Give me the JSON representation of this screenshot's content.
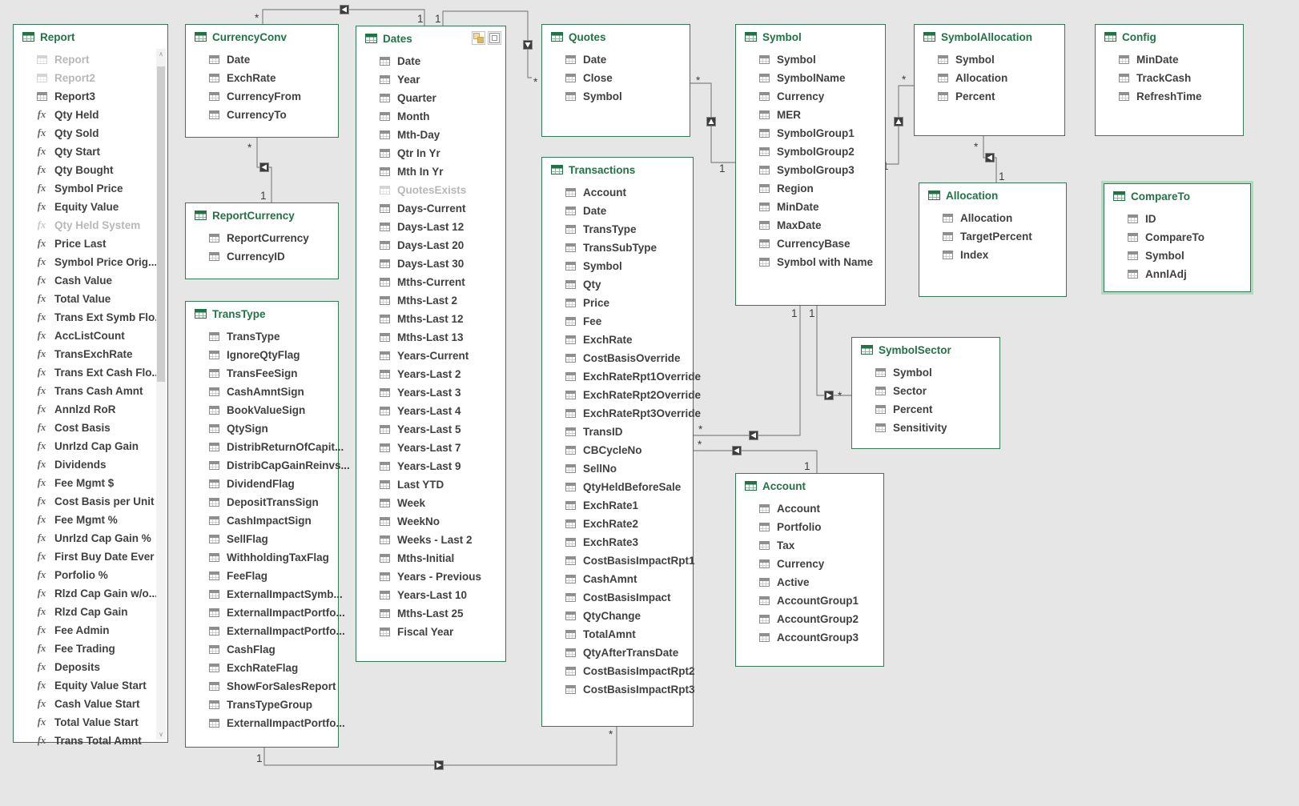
{
  "colors": {
    "background": "#e6e6e6",
    "table_border": "#337a55",
    "table_title": "#217346",
    "field_text": "#404040",
    "muted_text": "#b8b8b8",
    "connector_line": "#848484",
    "selected_outline": "#b0d9be"
  },
  "icons": {
    "measure": "fx",
    "scroll_up": "∧",
    "scroll_down": "∨"
  },
  "tables": {
    "report": {
      "title": "Report",
      "fields": [
        {
          "label": "Report",
          "muted": true
        },
        {
          "label": "Report2",
          "muted": true
        },
        "Report3",
        {
          "label": "Qty Held",
          "icon": "measure"
        },
        {
          "label": "Qty Sold",
          "icon": "measure"
        },
        {
          "label": "Qty Start",
          "icon": "measure"
        },
        {
          "label": "Qty Bought",
          "icon": "measure"
        },
        {
          "label": "Symbol Price",
          "icon": "measure"
        },
        {
          "label": "Equity Value",
          "icon": "measure"
        },
        {
          "label": "Qty Held System",
          "icon": "measure",
          "muted": true
        },
        {
          "label": "Price Last",
          "icon": "measure"
        },
        {
          "label": "Symbol Price Orig...",
          "icon": "measure"
        },
        {
          "label": "Cash Value",
          "icon": "measure"
        },
        {
          "label": "Total Value",
          "icon": "measure"
        },
        {
          "label": "Trans Ext Symb Flo...",
          "icon": "measure"
        },
        {
          "label": "AccListCount",
          "icon": "measure"
        },
        {
          "label": "TransExchRate",
          "icon": "measure"
        },
        {
          "label": "Trans Ext Cash Flo...",
          "icon": "measure"
        },
        {
          "label": "Trans Cash Amnt",
          "icon": "measure"
        },
        {
          "label": "Annlzd RoR",
          "icon": "measure"
        },
        {
          "label": "Cost Basis",
          "icon": "measure"
        },
        {
          "label": "Unrlzd Cap Gain",
          "icon": "measure"
        },
        {
          "label": "Dividends",
          "icon": "measure"
        },
        {
          "label": "Fee Mgmt $",
          "icon": "measure"
        },
        {
          "label": "Cost Basis per Unit",
          "icon": "measure"
        },
        {
          "label": "Fee Mgmt %",
          "icon": "measure"
        },
        {
          "label": "Unrlzd Cap Gain %",
          "icon": "measure"
        },
        {
          "label": "First Buy Date Ever",
          "icon": "measure"
        },
        {
          "label": "Porfolio %",
          "icon": "measure"
        },
        {
          "label": "Rlzd Cap Gain w/o...",
          "icon": "measure"
        },
        {
          "label": "Rlzd Cap Gain",
          "icon": "measure"
        },
        {
          "label": "Fee Admin",
          "icon": "measure"
        },
        {
          "label": "Fee Trading",
          "icon": "measure"
        },
        {
          "label": "Deposits",
          "icon": "measure"
        },
        {
          "label": "Equity Value Start",
          "icon": "measure"
        },
        {
          "label": "Cash Value Start",
          "icon": "measure"
        },
        {
          "label": "Total Value Start",
          "icon": "measure"
        },
        {
          "label": "Trans Total Amnt",
          "icon": "measure"
        }
      ]
    },
    "currency_conv": {
      "title": "CurrencyConv",
      "fields": [
        "Date",
        "ExchRate",
        "CurrencyFrom",
        "CurrencyTo"
      ]
    },
    "report_currency": {
      "title": "ReportCurrency",
      "fields": [
        "ReportCurrency",
        "CurrencyID"
      ]
    },
    "trans_type": {
      "title": "TransType",
      "fields": [
        "TransType",
        "IgnoreQtyFlag",
        "TransFeeSign",
        "CashAmntSign",
        "BookValueSign",
        "QtySign",
        "DistribReturnOfCapit...",
        "DistribCapGainReinvs...",
        "DividendFlag",
        "DepositTransSign",
        "CashImpactSign",
        "SellFlag",
        "WithholdingTaxFlag",
        "FeeFlag",
        "ExternalImpactSymb...",
        "ExternalImpactPortfo...",
        "ExternalImpactPortfo...",
        "CashFlag",
        "ExchRateFlag",
        "ShowForSalesReport",
        "TransTypeGroup",
        "ExternalImpactPortfo..."
      ]
    },
    "dates": {
      "title": "Dates",
      "fields": [
        "Date",
        "Year",
        "Quarter",
        "Month",
        "Mth-Day",
        "Qtr In Yr",
        "Mth In Yr",
        {
          "label": "QuotesExists",
          "muted": true
        },
        "Days-Current",
        "Days-Last 12",
        "Days-Last 20",
        "Days-Last 30",
        "Mths-Current",
        "Mths-Last 2",
        "Mths-Last 12",
        "Mths-Last 13",
        "Years-Current",
        "Years-Last 2",
        "Years-Last 3",
        "Years-Last 4",
        "Years-Last 5",
        "Years-Last 7",
        "Years-Last 9",
        "Last YTD",
        "Week",
        "WeekNo",
        "Weeks - Last 2",
        "Mths-Initial",
        "Years - Previous",
        "Years-Last 10",
        "Mths-Last 25",
        "Fiscal Year"
      ]
    },
    "quotes": {
      "title": "Quotes",
      "fields": [
        "Date",
        "Close",
        "Symbol"
      ]
    },
    "transactions": {
      "title": "Transactions",
      "fields": [
        "Account",
        "Date",
        "TransType",
        "TransSubType",
        "Symbol",
        "Qty",
        "Price",
        "Fee",
        "ExchRate",
        "CostBasisOverride",
        "ExchRateRpt1Override",
        "ExchRateRpt2Override",
        "ExchRateRpt3Override",
        "TransID",
        "CBCycleNo",
        "SellNo",
        "QtyHeldBeforeSale",
        "ExchRate1",
        "ExchRate2",
        "ExchRate3",
        "CostBasisImpactRpt1",
        "CashAmnt",
        "CostBasisImpact",
        "QtyChange",
        "TotalAmnt",
        "QtyAfterTransDate",
        "CostBasisImpactRpt2",
        "CostBasisImpactRpt3"
      ]
    },
    "symbol": {
      "title": "Symbol",
      "fields": [
        "Symbol",
        "SymbolName",
        "Currency",
        "MER",
        "SymbolGroup1",
        "SymbolGroup2",
        "SymbolGroup3",
        "Region",
        "MinDate",
        "MaxDate",
        "CurrencyBase",
        "Symbol with Name"
      ]
    },
    "symbol_allocation": {
      "title": "SymbolAllocation",
      "fields": [
        "Symbol",
        "Allocation",
        "Percent"
      ]
    },
    "config": {
      "title": "Config",
      "fields": [
        "MinDate",
        "TrackCash",
        "RefreshTime"
      ]
    },
    "allocation": {
      "title": "Allocation",
      "fields": [
        "Allocation",
        "TargetPercent",
        "Index"
      ]
    },
    "compare_to": {
      "title": "CompareTo",
      "fields": [
        "ID",
        "CompareTo",
        "Symbol",
        "AnnlAdj"
      ],
      "selected": true
    },
    "symbol_sector": {
      "title": "SymbolSector",
      "fields": [
        "Symbol",
        "Sector",
        "Percent",
        "Sensitivity"
      ]
    },
    "account": {
      "title": "Account",
      "fields": [
        "Account",
        "Portfolio",
        "Tax",
        "Currency",
        "Active",
        "AccountGroup1",
        "AccountGroup2",
        "AccountGroup3"
      ]
    }
  },
  "relationships": [
    {
      "table_a": "CurrencyConv",
      "card_a": "*",
      "table_b": "Dates",
      "card_b": "1"
    },
    {
      "table_a": "Dates",
      "card_a": "1",
      "table_b": "Quotes",
      "card_b": "*"
    },
    {
      "table_a": "CurrencyConv",
      "card_a": "*",
      "table_b": "ReportCurrency",
      "card_b": "1"
    },
    {
      "table_a": "Quotes",
      "card_a": "*",
      "table_b": "Symbol",
      "card_b": "1"
    },
    {
      "table_a": "SymbolAllocation",
      "card_a": "*",
      "table_b": "Symbol",
      "card_b": "1"
    },
    {
      "table_a": "SymbolAllocation",
      "card_a": "*",
      "table_b": "Allocation",
      "card_b": "1"
    },
    {
      "table_a": "Symbol",
      "card_a": "1",
      "table_b": "Transactions",
      "card_b": "*"
    },
    {
      "table_a": "Symbol",
      "card_a": "1",
      "table_b": "SymbolSector",
      "card_b": "*"
    },
    {
      "table_a": "Transactions",
      "card_a": "*",
      "table_b": "Account",
      "card_b": "1"
    },
    {
      "table_a": "TransType",
      "card_a": "1",
      "table_b": "Transactions",
      "card_b": "*"
    }
  ]
}
